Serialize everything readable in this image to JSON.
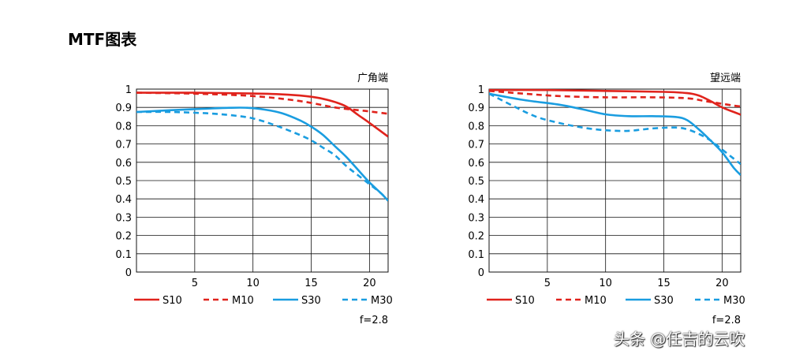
{
  "page": {
    "title": "MTF图表",
    "watermark": "头条 @任吉的云吹"
  },
  "chart_data": [
    {
      "type": "line",
      "title": "广角端",
      "xlabel": "",
      "ylabel": "",
      "xlim": [
        0,
        21.6
      ],
      "ylim": [
        0,
        1
      ],
      "x_ticks": [
        5,
        10,
        15,
        20
      ],
      "y_ticks": [
        0,
        0.1,
        0.2,
        0.3,
        0.4,
        0.5,
        0.6,
        0.7,
        0.8,
        0.9,
        1
      ],
      "grid": true,
      "note": "f=2.8",
      "legend_position": "bottom",
      "series": [
        {
          "name": "S10",
          "color": "#e0231c",
          "dash": "solid",
          "x": [
            0,
            5,
            10,
            12,
            14,
            15,
            16,
            17,
            18,
            19,
            20,
            21.6
          ],
          "y": [
            0.98,
            0.98,
            0.976,
            0.973,
            0.965,
            0.958,
            0.947,
            0.93,
            0.905,
            0.86,
            0.815,
            0.74
          ]
        },
        {
          "name": "M10",
          "color": "#e0231c",
          "dash": "dashed",
          "x": [
            0,
            5,
            10,
            14,
            17,
            19,
            20,
            21.6
          ],
          "y": [
            0.98,
            0.975,
            0.962,
            0.935,
            0.9,
            0.885,
            0.878,
            0.865
          ]
        },
        {
          "name": "S30",
          "color": "#1a9de0",
          "dash": "solid",
          "x": [
            0,
            3,
            6,
            8,
            9.5,
            11,
            12.5,
            14,
            15,
            16,
            17,
            18,
            19,
            20,
            21,
            21.6
          ],
          "y": [
            0.875,
            0.885,
            0.893,
            0.898,
            0.898,
            0.888,
            0.868,
            0.83,
            0.795,
            0.75,
            0.69,
            0.63,
            0.56,
            0.49,
            0.43,
            0.39
          ]
        },
        {
          "name": "M30",
          "color": "#1a9de0",
          "dash": "dashed",
          "x": [
            0,
            3,
            6,
            8,
            10,
            12,
            14,
            15,
            16,
            17,
            18,
            19,
            20,
            21,
            21.6
          ],
          "y": [
            0.875,
            0.875,
            0.868,
            0.858,
            0.84,
            0.8,
            0.75,
            0.72,
            0.68,
            0.64,
            0.58,
            0.53,
            0.48,
            0.43,
            0.39
          ]
        }
      ]
    },
    {
      "type": "line",
      "title": "望远端",
      "xlabel": "",
      "ylabel": "",
      "xlim": [
        0,
        21.6
      ],
      "ylim": [
        0,
        1
      ],
      "x_ticks": [
        5,
        10,
        15,
        20
      ],
      "y_ticks": [
        0,
        0.1,
        0.2,
        0.3,
        0.4,
        0.5,
        0.6,
        0.7,
        0.8,
        0.9,
        1
      ],
      "grid": true,
      "note": "f=2.8",
      "legend_position": "bottom",
      "series": [
        {
          "name": "S10",
          "color": "#e0231c",
          "dash": "solid",
          "x": [
            0,
            5,
            10,
            15,
            17,
            18,
            19,
            20,
            21,
            21.6
          ],
          "y": [
            0.995,
            0.995,
            0.99,
            0.985,
            0.978,
            0.965,
            0.935,
            0.9,
            0.875,
            0.86
          ]
        },
        {
          "name": "M10",
          "color": "#e0231c",
          "dash": "dashed",
          "x": [
            0,
            3,
            6,
            10,
            14,
            17,
            18.5,
            20,
            21,
            21.6
          ],
          "y": [
            0.99,
            0.975,
            0.962,
            0.955,
            0.955,
            0.95,
            0.935,
            0.92,
            0.91,
            0.905
          ]
        },
        {
          "name": "S30",
          "color": "#1a9de0",
          "dash": "solid",
          "x": [
            0,
            3,
            6,
            8,
            10,
            12,
            14,
            16,
            17,
            18,
            19,
            20,
            21,
            21.6
          ],
          "y": [
            0.975,
            0.94,
            0.915,
            0.89,
            0.862,
            0.852,
            0.852,
            0.848,
            0.83,
            0.78,
            0.72,
            0.655,
            0.57,
            0.53
          ]
        },
        {
          "name": "M30",
          "color": "#1a9de0",
          "dash": "dashed",
          "x": [
            0,
            2,
            4,
            6,
            8,
            10,
            12,
            14,
            16,
            17,
            18,
            19,
            20,
            21,
            21.6
          ],
          "y": [
            0.975,
            0.91,
            0.85,
            0.815,
            0.79,
            0.775,
            0.772,
            0.785,
            0.79,
            0.78,
            0.755,
            0.72,
            0.67,
            0.62,
            0.59
          ]
        }
      ]
    }
  ]
}
